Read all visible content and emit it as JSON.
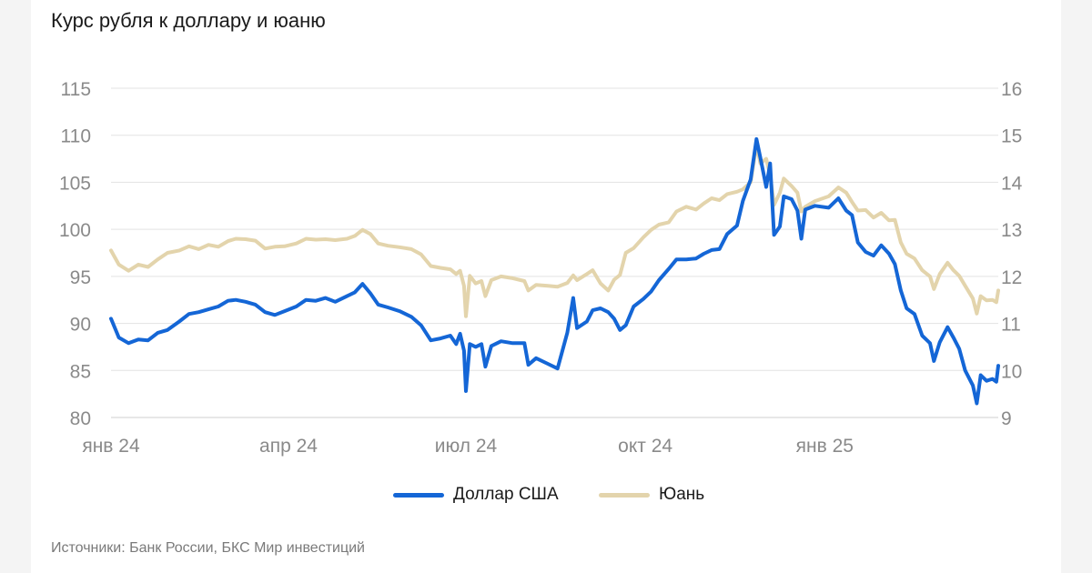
{
  "title": "Курс рубля к доллару и юаню",
  "source": "Источники: Банк России, БКС Мир инвестиций",
  "colors": {
    "usd": "#1466d6",
    "cny": "#e3d4ac",
    "grid": "#e3e3e3",
    "tick": "#8a8a8a"
  },
  "chart_data": {
    "type": "line",
    "title": "Курс рубля к доллару и юаню",
    "xlabel": "",
    "ylabel": "",
    "x_ticks": [
      "янв 24",
      "апр 24",
      "июл 24",
      "окт 24",
      "янв 25"
    ],
    "x_tick_dates": [
      "2024-01-01",
      "2024-04-01",
      "2024-07-01",
      "2024-10-01",
      "2025-01-01"
    ],
    "xlim": [
      "2024-01-01",
      "2025-03-31"
    ],
    "y_left": {
      "lim": [
        80,
        115
      ],
      "ticks": [
        "115",
        "110",
        "105",
        "100",
        "95",
        "90",
        "85",
        "80"
      ]
    },
    "y_right": {
      "lim": [
        9,
        16
      ],
      "ticks": [
        "16",
        "15",
        "14",
        "13",
        "12",
        "11",
        "10",
        "9"
      ]
    },
    "grid": true,
    "legend_position": "bottom",
    "series": [
      {
        "name": "Доллар США",
        "axis": "left",
        "color": "#1466d6",
        "points": [
          [
            "2024-01-01",
            90.5
          ],
          [
            "2024-01-05",
            88.5
          ],
          [
            "2024-01-10",
            87.9
          ],
          [
            "2024-01-15",
            88.3
          ],
          [
            "2024-01-20",
            88.2
          ],
          [
            "2024-01-25",
            89.0
          ],
          [
            "2024-01-30",
            89.3
          ],
          [
            "2024-02-05",
            90.2
          ],
          [
            "2024-02-10",
            91.0
          ],
          [
            "2024-02-15",
            91.2
          ],
          [
            "2024-02-20",
            91.5
          ],
          [
            "2024-02-25",
            91.8
          ],
          [
            "2024-03-01",
            92.4
          ],
          [
            "2024-03-05",
            92.5
          ],
          [
            "2024-03-10",
            92.3
          ],
          [
            "2024-03-15",
            92.0
          ],
          [
            "2024-03-20",
            91.2
          ],
          [
            "2024-03-25",
            90.9
          ],
          [
            "2024-03-30",
            91.3
          ],
          [
            "2024-04-05",
            91.8
          ],
          [
            "2024-04-10",
            92.5
          ],
          [
            "2024-04-15",
            92.4
          ],
          [
            "2024-04-20",
            92.7
          ],
          [
            "2024-04-25",
            92.3
          ],
          [
            "2024-05-01",
            92.9
          ],
          [
            "2024-05-05",
            93.3
          ],
          [
            "2024-05-09",
            94.2
          ],
          [
            "2024-05-13",
            93.2
          ],
          [
            "2024-05-17",
            92.0
          ],
          [
            "2024-05-22",
            91.7
          ],
          [
            "2024-05-28",
            91.3
          ],
          [
            "2024-06-03",
            90.7
          ],
          [
            "2024-06-08",
            89.8
          ],
          [
            "2024-06-13",
            88.2
          ],
          [
            "2024-06-18",
            88.4
          ],
          [
            "2024-06-23",
            88.7
          ],
          [
            "2024-06-26",
            87.8
          ],
          [
            "2024-06-28",
            88.9
          ],
          [
            "2024-06-30",
            87.1
          ],
          [
            "2024-07-01",
            82.8
          ],
          [
            "2024-07-03",
            87.8
          ],
          [
            "2024-07-06",
            87.5
          ],
          [
            "2024-07-09",
            87.8
          ],
          [
            "2024-07-11",
            85.4
          ],
          [
            "2024-07-14",
            87.6
          ],
          [
            "2024-07-19",
            88.1
          ],
          [
            "2024-07-25",
            87.9
          ],
          [
            "2024-07-31",
            87.9
          ],
          [
            "2024-08-02",
            85.6
          ],
          [
            "2024-08-06",
            86.3
          ],
          [
            "2024-08-12",
            85.7
          ],
          [
            "2024-08-17",
            85.2
          ],
          [
            "2024-08-22",
            89.0
          ],
          [
            "2024-08-25",
            92.7
          ],
          [
            "2024-08-27",
            89.5
          ],
          [
            "2024-09-01",
            90.2
          ],
          [
            "2024-09-04",
            91.4
          ],
          [
            "2024-09-08",
            91.6
          ],
          [
            "2024-09-12",
            91.2
          ],
          [
            "2024-09-15",
            90.5
          ],
          [
            "2024-09-18",
            89.3
          ],
          [
            "2024-09-21",
            89.8
          ],
          [
            "2024-09-25",
            91.8
          ],
          [
            "2024-09-30",
            92.6
          ],
          [
            "2024-10-04",
            93.4
          ],
          [
            "2024-10-08",
            94.6
          ],
          [
            "2024-10-13",
            95.8
          ],
          [
            "2024-10-17",
            96.8
          ],
          [
            "2024-10-22",
            96.8
          ],
          [
            "2024-10-27",
            96.9
          ],
          [
            "2024-10-31",
            97.4
          ],
          [
            "2024-11-04",
            97.8
          ],
          [
            "2024-11-08",
            97.9
          ],
          [
            "2024-11-12",
            99.5
          ],
          [
            "2024-11-17",
            100.4
          ],
          [
            "2024-11-20",
            103.0
          ],
          [
            "2024-11-24",
            105.3
          ],
          [
            "2024-11-27",
            109.6
          ],
          [
            "2024-11-29",
            107.6
          ],
          [
            "2024-12-02",
            104.5
          ],
          [
            "2024-12-04",
            107.0
          ],
          [
            "2024-12-06",
            99.4
          ],
          [
            "2024-12-09",
            100.3
          ],
          [
            "2024-12-11",
            103.5
          ],
          [
            "2024-12-15",
            103.2
          ],
          [
            "2024-12-18",
            102.0
          ],
          [
            "2024-12-20",
            99.0
          ],
          [
            "2024-12-22",
            102.1
          ],
          [
            "2024-12-27",
            102.5
          ],
          [
            "2025-01-03",
            102.3
          ],
          [
            "2025-01-08",
            103.3
          ],
          [
            "2025-01-12",
            102.0
          ],
          [
            "2025-01-15",
            101.5
          ],
          [
            "2025-01-18",
            98.6
          ],
          [
            "2025-01-22",
            97.6
          ],
          [
            "2025-01-26",
            97.2
          ],
          [
            "2025-01-30",
            98.3
          ],
          [
            "2025-02-03",
            97.4
          ],
          [
            "2025-02-06",
            96.3
          ],
          [
            "2025-02-09",
            93.5
          ],
          [
            "2025-02-12",
            91.6
          ],
          [
            "2025-02-16",
            91.0
          ],
          [
            "2025-02-20",
            88.7
          ],
          [
            "2025-02-24",
            87.9
          ],
          [
            "2025-02-26",
            86.0
          ],
          [
            "2025-03-01",
            88.0
          ],
          [
            "2025-03-05",
            89.6
          ],
          [
            "2025-03-08",
            88.5
          ],
          [
            "2025-03-11",
            87.3
          ],
          [
            "2025-03-14",
            85.0
          ],
          [
            "2025-03-18",
            83.4
          ],
          [
            "2025-03-20",
            81.5
          ],
          [
            "2025-03-22",
            84.5
          ],
          [
            "2025-03-25",
            83.9
          ],
          [
            "2025-03-28",
            84.1
          ],
          [
            "2025-03-30",
            83.8
          ],
          [
            "2025-03-31",
            85.5
          ]
        ]
      },
      {
        "name": "Юань",
        "axis": "right",
        "color": "#e3d4ac",
        "points": [
          [
            "2024-01-01",
            12.55
          ],
          [
            "2024-01-05",
            12.25
          ],
          [
            "2024-01-10",
            12.12
          ],
          [
            "2024-01-15",
            12.25
          ],
          [
            "2024-01-20",
            12.2
          ],
          [
            "2024-01-25",
            12.36
          ],
          [
            "2024-01-30",
            12.5
          ],
          [
            "2024-02-05",
            12.55
          ],
          [
            "2024-02-10",
            12.64
          ],
          [
            "2024-02-15",
            12.58
          ],
          [
            "2024-02-20",
            12.67
          ],
          [
            "2024-02-25",
            12.63
          ],
          [
            "2024-03-01",
            12.75
          ],
          [
            "2024-03-05",
            12.8
          ],
          [
            "2024-03-10",
            12.79
          ],
          [
            "2024-03-15",
            12.76
          ],
          [
            "2024-03-20",
            12.59
          ],
          [
            "2024-03-25",
            12.63
          ],
          [
            "2024-03-30",
            12.64
          ],
          [
            "2024-04-05",
            12.7
          ],
          [
            "2024-04-10",
            12.8
          ],
          [
            "2024-04-15",
            12.78
          ],
          [
            "2024-04-20",
            12.79
          ],
          [
            "2024-04-25",
            12.77
          ],
          [
            "2024-05-01",
            12.8
          ],
          [
            "2024-05-05",
            12.86
          ],
          [
            "2024-05-09",
            12.99
          ],
          [
            "2024-05-13",
            12.9
          ],
          [
            "2024-05-17",
            12.7
          ],
          [
            "2024-05-22",
            12.65
          ],
          [
            "2024-05-28",
            12.62
          ],
          [
            "2024-06-03",
            12.58
          ],
          [
            "2024-06-08",
            12.47
          ],
          [
            "2024-06-13",
            12.22
          ],
          [
            "2024-06-18",
            12.18
          ],
          [
            "2024-06-23",
            12.15
          ],
          [
            "2024-06-26",
            12.05
          ],
          [
            "2024-06-28",
            12.12
          ],
          [
            "2024-06-30",
            11.8
          ],
          [
            "2024-07-01",
            11.15
          ],
          [
            "2024-07-03",
            12.01
          ],
          [
            "2024-07-06",
            11.85
          ],
          [
            "2024-07-09",
            11.9
          ],
          [
            "2024-07-11",
            11.58
          ],
          [
            "2024-07-14",
            11.92
          ],
          [
            "2024-07-19",
            12.0
          ],
          [
            "2024-07-25",
            11.96
          ],
          [
            "2024-07-31",
            11.9
          ],
          [
            "2024-08-02",
            11.7
          ],
          [
            "2024-08-06",
            11.82
          ],
          [
            "2024-08-12",
            11.8
          ],
          [
            "2024-08-17",
            11.78
          ],
          [
            "2024-08-22",
            11.86
          ],
          [
            "2024-08-25",
            12.02
          ],
          [
            "2024-08-27",
            11.92
          ],
          [
            "2024-09-01",
            12.05
          ],
          [
            "2024-09-04",
            12.13
          ],
          [
            "2024-09-08",
            11.85
          ],
          [
            "2024-09-12",
            11.7
          ],
          [
            "2024-09-15",
            11.93
          ],
          [
            "2024-09-18",
            12.03
          ],
          [
            "2024-09-21",
            12.5
          ],
          [
            "2024-09-25",
            12.6
          ],
          [
            "2024-09-30",
            12.83
          ],
          [
            "2024-10-04",
            12.99
          ],
          [
            "2024-10-08",
            13.1
          ],
          [
            "2024-10-13",
            13.15
          ],
          [
            "2024-10-17",
            13.38
          ],
          [
            "2024-10-22",
            13.48
          ],
          [
            "2024-10-27",
            13.42
          ],
          [
            "2024-10-31",
            13.55
          ],
          [
            "2024-11-04",
            13.66
          ],
          [
            "2024-11-08",
            13.62
          ],
          [
            "2024-11-12",
            13.75
          ],
          [
            "2024-11-17",
            13.8
          ],
          [
            "2024-11-20",
            13.85
          ],
          [
            "2024-11-24",
            14.0
          ],
          [
            "2024-11-27",
            14.8
          ],
          [
            "2024-11-29",
            14.4
          ],
          [
            "2024-12-02",
            14.5
          ],
          [
            "2024-12-04",
            14.15
          ],
          [
            "2024-12-06",
            13.52
          ],
          [
            "2024-12-09",
            13.78
          ],
          [
            "2024-12-11",
            14.08
          ],
          [
            "2024-12-15",
            13.92
          ],
          [
            "2024-12-18",
            13.78
          ],
          [
            "2024-12-20",
            13.38
          ],
          [
            "2024-12-22",
            13.48
          ],
          [
            "2024-12-27",
            13.6
          ],
          [
            "2025-01-03",
            13.7
          ],
          [
            "2025-01-08",
            13.89
          ],
          [
            "2025-01-12",
            13.78
          ],
          [
            "2025-01-15",
            13.58
          ],
          [
            "2025-01-18",
            13.4
          ],
          [
            "2025-01-22",
            13.41
          ],
          [
            "2025-01-26",
            13.25
          ],
          [
            "2025-01-30",
            13.35
          ],
          [
            "2025-02-03",
            13.19
          ],
          [
            "2025-02-06",
            13.2
          ],
          [
            "2025-02-09",
            12.72
          ],
          [
            "2025-02-12",
            12.48
          ],
          [
            "2025-02-16",
            12.38
          ],
          [
            "2025-02-20",
            12.13
          ],
          [
            "2025-02-24",
            12.0
          ],
          [
            "2025-02-26",
            11.73
          ],
          [
            "2025-03-01",
            12.05
          ],
          [
            "2025-03-05",
            12.29
          ],
          [
            "2025-03-08",
            12.13
          ],
          [
            "2025-03-11",
            12.01
          ],
          [
            "2025-03-14",
            11.8
          ],
          [
            "2025-03-18",
            11.53
          ],
          [
            "2025-03-20",
            11.21
          ],
          [
            "2025-03-22",
            11.58
          ],
          [
            "2025-03-25",
            11.49
          ],
          [
            "2025-03-28",
            11.5
          ],
          [
            "2025-03-30",
            11.45
          ],
          [
            "2025-03-31",
            11.7
          ]
        ]
      }
    ]
  }
}
